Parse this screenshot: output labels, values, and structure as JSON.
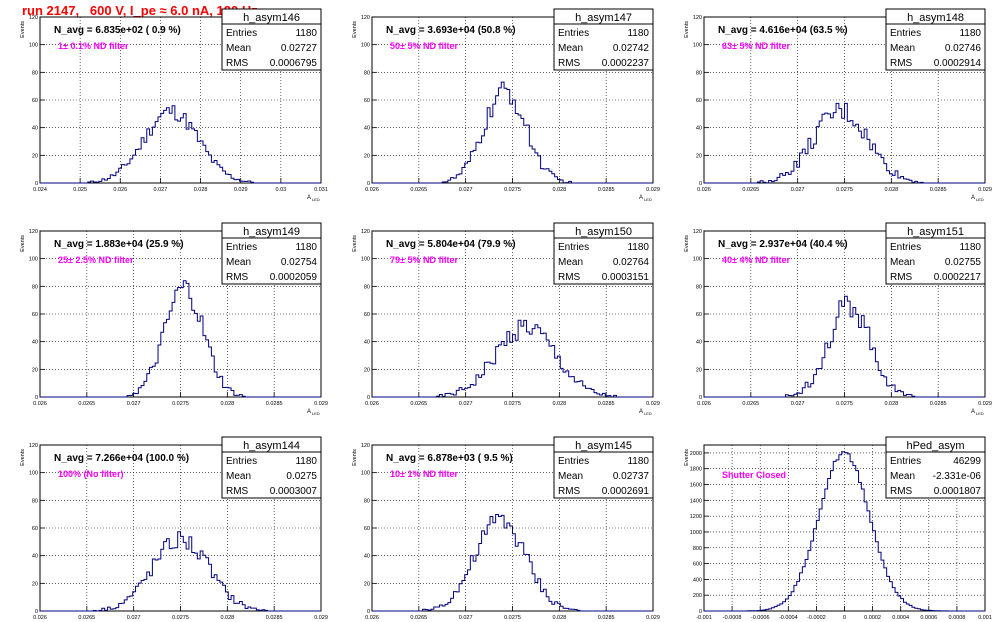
{
  "page_title": "run 2147,   600 V, I_pe ≈ 6.0 nA, 120 Hz",
  "common": {
    "ylabel": "Events",
    "xlabel_main": "A",
    "xlabel_sub": "LED",
    "stats_labels": [
      "Entries",
      "Mean",
      "RMS"
    ]
  },
  "colors": {
    "histogram": "#000080",
    "annotation": "#ff00ff",
    "title": "#ff0000",
    "grid": "#000000"
  },
  "chart_data": [
    {
      "type": "histogram",
      "name": "h_asym146",
      "navg_label": "N_avg = 6.835e+02 ( 0.9 %)",
      "filter_label": "1± 0.1% ND filter",
      "stats": {
        "entries": "1180",
        "mean": "0.02727",
        "rms": "0.0006795"
      },
      "xlim": [
        0.024,
        0.031
      ],
      "ylim": [
        0,
        120
      ],
      "grid": true,
      "xticks": [
        "0.024",
        "0.025",
        "0.026",
        "0.027",
        "0.028",
        "0.029",
        "0.03",
        "0.031"
      ],
      "yticks": [
        "0",
        "20",
        "40",
        "60",
        "80",
        "100",
        "120"
      ],
      "mean": 0.02727,
      "rms": 0.0006795,
      "peak": 52,
      "bins": 100,
      "noise_amp": 6
    },
    {
      "type": "histogram",
      "name": "h_asym147",
      "navg_label": "N_avg = 3.693e+04 (50.8 %)",
      "filter_label": "50± 5% ND filter",
      "stats": {
        "entries": "1180",
        "mean": "0.02742",
        "rms": "0.0002237"
      },
      "xlim": [
        0.026,
        0.029
      ],
      "ylim": [
        0,
        120
      ],
      "grid": true,
      "xticks": [
        "0.026",
        "0.0265",
        "0.027",
        "0.0275",
        "0.028",
        "0.0285",
        "0.029"
      ],
      "yticks": [
        "0",
        "20",
        "40",
        "60",
        "80",
        "100",
        "120"
      ],
      "mean": 0.02742,
      "rms": 0.0002237,
      "peak": 66,
      "bins": 100,
      "noise_amp": 8
    },
    {
      "type": "histogram",
      "name": "h_asym148",
      "navg_label": "N_avg = 4.616e+04 (63.5 %)",
      "filter_label": "63± 5% ND filter",
      "stats": {
        "entries": "1180",
        "mean": "0.02746",
        "rms": "0.0002914"
      },
      "xlim": [
        0.026,
        0.029
      ],
      "ylim": [
        0,
        120
      ],
      "grid": true,
      "xticks": [
        "0.026",
        "0.0265",
        "0.027",
        "0.0275",
        "0.028",
        "0.0285",
        "0.029"
      ],
      "yticks": [
        "0",
        "20",
        "40",
        "60",
        "80",
        "100",
        "120"
      ],
      "mean": 0.02746,
      "rms": 0.0002914,
      "peak": 52,
      "bins": 100,
      "noise_amp": 8
    },
    {
      "type": "histogram",
      "name": "h_asym149",
      "navg_label": "N_avg = 1.883e+04 (25.9 %)",
      "filter_label": "25± 2.5% ND filter",
      "stats": {
        "entries": "1180",
        "mean": "0.02754",
        "rms": "0.0002059"
      },
      "xlim": [
        0.026,
        0.029
      ],
      "ylim": [
        0,
        120
      ],
      "grid": true,
      "xticks": [
        "0.026",
        "0.0265",
        "0.027",
        "0.0275",
        "0.028",
        "0.0285",
        "0.029"
      ],
      "yticks": [
        "0",
        "20",
        "40",
        "60",
        "80",
        "100",
        "120"
      ],
      "mean": 0.02754,
      "rms": 0.0002059,
      "peak": 78,
      "bins": 100,
      "noise_amp": 9
    },
    {
      "type": "histogram",
      "name": "h_asym150",
      "navg_label": "N_avg = 5.804e+04 (79.9 %)",
      "filter_label": "79± 5% ND filter",
      "stats": {
        "entries": "1180",
        "mean": "0.02764",
        "rms": "0.0003151"
      },
      "xlim": [
        0.026,
        0.029
      ],
      "ylim": [
        0,
        120
      ],
      "grid": true,
      "xticks": [
        "0.026",
        "0.0265",
        "0.027",
        "0.0275",
        "0.028",
        "0.0285",
        "0.029"
      ],
      "yticks": [
        "0",
        "20",
        "40",
        "60",
        "80",
        "100",
        "120"
      ],
      "mean": 0.02764,
      "rms": 0.0003151,
      "peak": 51,
      "bins": 100,
      "noise_amp": 8
    },
    {
      "type": "histogram",
      "name": "h_asym151",
      "navg_label": "N_avg = 2.937e+04 (40.4 %)",
      "filter_label": "40± 4% ND filter",
      "stats": {
        "entries": "1180",
        "mean": "0.02755",
        "rms": "0.0002217"
      },
      "xlim": [
        0.026,
        0.029
      ],
      "ylim": [
        0,
        120
      ],
      "grid": true,
      "xticks": [
        "0.026",
        "0.0265",
        "0.027",
        "0.0275",
        "0.028",
        "0.0285",
        "0.029"
      ],
      "yticks": [
        "0",
        "20",
        "40",
        "60",
        "80",
        "100",
        "120"
      ],
      "mean": 0.02755,
      "rms": 0.0002217,
      "peak": 67,
      "bins": 100,
      "noise_amp": 9
    },
    {
      "type": "histogram",
      "name": "h_asym144",
      "navg_label": "N_avg = 7.266e+04 (100.0 %)",
      "filter_label": "100% (No filter)",
      "stats": {
        "entries": "1180",
        "mean": "0.0275",
        "rms": "0.0003007"
      },
      "xlim": [
        0.026,
        0.029
      ],
      "ylim": [
        0,
        120
      ],
      "grid": true,
      "xticks": [
        "0.026",
        "0.0265",
        "0.027",
        "0.0275",
        "0.028",
        "0.0285",
        "0.029"
      ],
      "yticks": [
        "0",
        "20",
        "40",
        "60",
        "80",
        "100",
        "120"
      ],
      "mean": 0.0275,
      "rms": 0.0003007,
      "peak": 52,
      "bins": 100,
      "noise_amp": 7
    },
    {
      "type": "histogram",
      "name": "h_asym145",
      "navg_label": "N_avg = 6.878e+03 ( 9.5 %)",
      "filter_label": "10± 1% ND filter",
      "stats": {
        "entries": "1180",
        "mean": "0.02737",
        "rms": "0.0002691"
      },
      "xlim": [
        0.026,
        0.029
      ],
      "ylim": [
        0,
        120
      ],
      "grid": true,
      "xticks": [
        "0.026",
        "0.0265",
        "0.027",
        "0.0275",
        "0.028",
        "0.0285",
        "0.029"
      ],
      "yticks": [
        "0",
        "20",
        "40",
        "60",
        "80",
        "100",
        "120"
      ],
      "mean": 0.02737,
      "rms": 0.0002691,
      "peak": 66,
      "bins": 100,
      "noise_amp": 8
    },
    {
      "type": "histogram",
      "name": "hPed_asym",
      "navg_label": "",
      "filter_label": "Shutter Closed",
      "stats": {
        "entries": "46299",
        "mean": "-2.331e-06",
        "rms": "0.0001807"
      },
      "xlim": [
        -0.001,
        0.001
      ],
      "ylim": [
        0,
        2100
      ],
      "grid": true,
      "xticks": [
        "-0.001",
        "-0.0008",
        "-0.0006",
        "-0.0004",
        "-0.0002",
        "0",
        "0.0002",
        "0.0004",
        "0.0006",
        "0.0008",
        "0.001"
      ],
      "yticks": [
        "0",
        "200",
        "400",
        "600",
        "800",
        "1000",
        "1200",
        "1400",
        "1600",
        "1800",
        "2000"
      ],
      "mean": -2.331e-06,
      "rms": 0.0001807,
      "peak": 2000,
      "bins": 100,
      "noise_amp": 30
    }
  ]
}
